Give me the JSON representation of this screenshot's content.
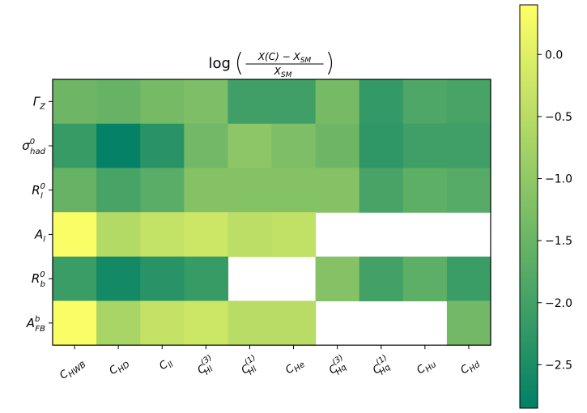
{
  "chart_data": {
    "type": "heatmap",
    "title": "log((X(C) − X_SM) / X_SM)",
    "rows": [
      {
        "main": "Γ",
        "sub": "Z",
        "sup": ""
      },
      {
        "main": "σ",
        "sub": "had",
        "sup": "0"
      },
      {
        "main": "R",
        "sub": "l",
        "sup": "0"
      },
      {
        "main": "A",
        "sub": "l",
        "sup": ""
      },
      {
        "main": "R",
        "sub": "b",
        "sup": "0"
      },
      {
        "main": "A",
        "sub": "FB",
        "sup": "b"
      }
    ],
    "columns": [
      {
        "main": "C",
        "sub": "HWB",
        "sup": ""
      },
      {
        "main": "C",
        "sub": "HD",
        "sup": ""
      },
      {
        "main": "C",
        "sub": "ll",
        "sup": ""
      },
      {
        "main": "C",
        "sub": "Hl",
        "sup": "(3)"
      },
      {
        "main": "C",
        "sub": "Hl",
        "sup": "(1)"
      },
      {
        "main": "C",
        "sub": "He",
        "sup": ""
      },
      {
        "main": "C",
        "sub": "Hq",
        "sup": "(3)"
      },
      {
        "main": "C",
        "sub": "Hq",
        "sup": "(1)"
      },
      {
        "main": "C",
        "sub": "Hu",
        "sup": ""
      },
      {
        "main": "C",
        "sub": "Hd",
        "sup": ""
      }
    ],
    "values": [
      [
        -1.45,
        -1.55,
        -1.35,
        -1.25,
        -2.05,
        -2.05,
        -1.35,
        -2.2,
        -1.85,
        -1.95
      ],
      [
        -2.15,
        -2.8,
        -2.35,
        -1.4,
        -1.05,
        -1.25,
        -1.45,
        -2.25,
        -2.05,
        -2.05
      ],
      [
        -1.55,
        -1.95,
        -1.7,
        -1.15,
        -1.15,
        -1.15,
        -1.15,
        -1.95,
        -1.65,
        -1.75
      ],
      [
        0.35,
        -0.55,
        -0.35,
        -0.25,
        -0.45,
        -0.4,
        null,
        null,
        null,
        null
      ],
      [
        -2.1,
        -2.6,
        -2.35,
        -2.15,
        null,
        null,
        -1.15,
        -2.0,
        -1.65,
        -2.1
      ],
      [
        0.35,
        -0.7,
        -0.35,
        -0.25,
        -0.5,
        -0.5,
        null,
        null,
        null,
        -1.4
      ]
    ],
    "colorbar": {
      "range": [
        -2.85,
        0.4
      ],
      "ticks": [
        0.0,
        -0.5,
        -1.0,
        -1.5,
        -2.0,
        -2.5
      ],
      "tick_labels": [
        "0.0",
        "−0.5",
        "−1.0",
        "−1.5",
        "−2.0",
        "−2.5"
      ],
      "colormap": "summer"
    }
  }
}
